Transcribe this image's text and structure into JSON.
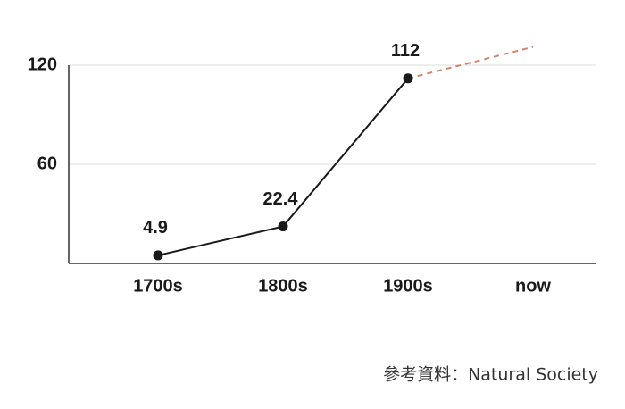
{
  "chart_data": {
    "type": "line",
    "categories": [
      "1700s",
      "1800s",
      "1900s",
      "now"
    ],
    "values": [
      4.9,
      22.4,
      112,
      null
    ],
    "color": "#1a1a1a",
    "projection": {
      "values": [
        null,
        null,
        112,
        131
      ],
      "color": "#d9826a"
    },
    "ylim": [
      0,
      120
    ],
    "yticks": [
      60,
      120
    ],
    "grid": true,
    "source": "參考資料：Natural Society"
  }
}
